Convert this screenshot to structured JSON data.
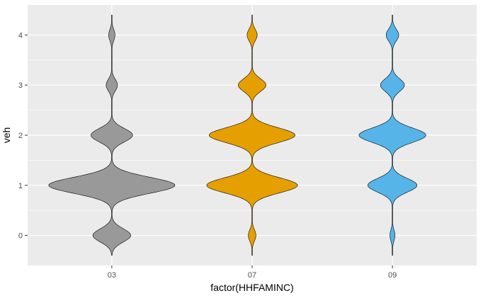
{
  "chart_data": {
    "type": "violin",
    "title": "",
    "xlabel": "factor(HHFAMINC)",
    "ylabel": "veh",
    "categories": [
      "03",
      "07",
      "09"
    ],
    "fill_colors": [
      "#999999",
      "#E69F00",
      "#56B4E9"
    ],
    "outline_color": "#000000",
    "panel_background": "#EBEBEB",
    "grid": true,
    "legend": "none",
    "ylim": [
      -0.6,
      4.6
    ],
    "y_ticks": [
      0,
      1,
      2,
      3,
      4
    ],
    "y_tick_labels": [
      "0",
      "1",
      "2",
      "3",
      "4"
    ],
    "series": [
      {
        "category": "03",
        "y_range": [
          -0.4,
          4.4
        ],
        "peaks": [
          {
            "y": 0,
            "relative_width": 0.3
          },
          {
            "y": 1,
            "relative_width": 1.0
          },
          {
            "y": 2,
            "relative_width": 0.33
          },
          {
            "y": 3,
            "relative_width": 0.09
          },
          {
            "y": 4,
            "relative_width": 0.05
          }
        ]
      },
      {
        "category": "07",
        "y_range": [
          -0.4,
          4.4
        ],
        "peaks": [
          {
            "y": 0,
            "relative_width": 0.06
          },
          {
            "y": 1,
            "relative_width": 0.72
          },
          {
            "y": 2,
            "relative_width": 0.68
          },
          {
            "y": 3,
            "relative_width": 0.22
          },
          {
            "y": 4,
            "relative_width": 0.08
          }
        ]
      },
      {
        "category": "09",
        "y_range": [
          -0.4,
          4.4
        ],
        "peaks": [
          {
            "y": 0,
            "relative_width": 0.04
          },
          {
            "y": 1,
            "relative_width": 0.39
          },
          {
            "y": 2,
            "relative_width": 0.53
          },
          {
            "y": 3,
            "relative_width": 0.19
          },
          {
            "y": 4,
            "relative_width": 0.1
          }
        ]
      }
    ]
  }
}
